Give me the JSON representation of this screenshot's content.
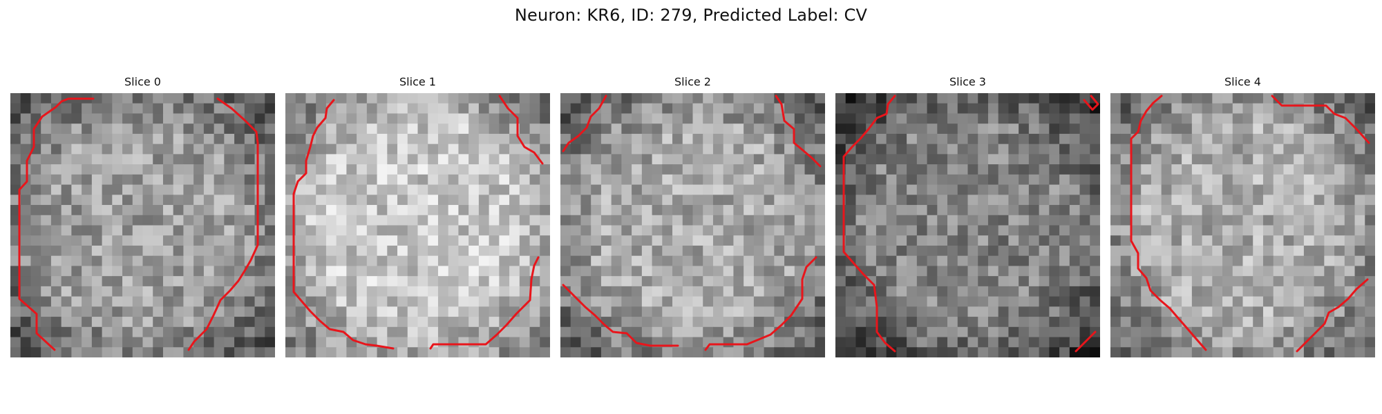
{
  "figure": {
    "title": "Neuron: KR6, ID: 279, Predicted Label: CV"
  },
  "panels": [
    {
      "title": "Slice 0",
      "mean_brightness": 0.62,
      "outline": "octagon-centered"
    },
    {
      "title": "Slice 1",
      "mean_brightness": 0.78,
      "outline": "octagon-centered"
    },
    {
      "title": "Slice 2",
      "mean_brightness": 0.66,
      "outline": "corner-arcs"
    },
    {
      "title": "Slice 3",
      "mean_brightness": 0.52,
      "outline": "left-arc"
    },
    {
      "title": "Slice 4",
      "mean_brightness": 0.68,
      "outline": "left-and-right-arcs"
    }
  ],
  "colors": {
    "contour": "#e8151b",
    "background": "#ffffff"
  },
  "colormap": "grayscale"
}
